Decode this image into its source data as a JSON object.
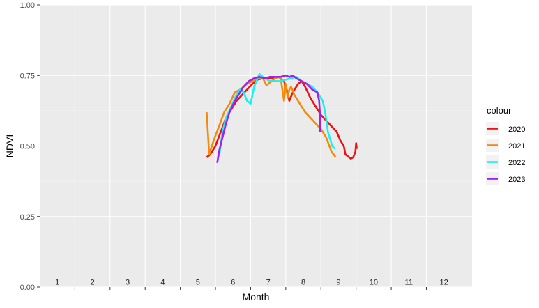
{
  "chart_data": {
    "type": "line",
    "xlabel": "Month",
    "ylabel": "NDVI",
    "xlim": [
      0.5,
      12.8
    ],
    "ylim": [
      0,
      1
    ],
    "y_ticks": [
      0.0,
      0.25,
      0.5,
      0.75,
      1.0
    ],
    "y_tick_labels": [
      "0.00",
      "0.25",
      "0.50",
      "0.75",
      "1.00"
    ],
    "month_labels": [
      "1",
      "2",
      "3",
      "4",
      "5",
      "6",
      "7",
      "8",
      "9",
      "10",
      "11",
      "12"
    ],
    "grid": true,
    "legend": {
      "title": "colour",
      "position": "right"
    },
    "series": [
      {
        "name": "2020",
        "color": "#ee1111",
        "points": [
          [
            5.25,
            0.46
          ],
          [
            5.35,
            0.47
          ],
          [
            5.5,
            0.5
          ],
          [
            5.65,
            0.55
          ],
          [
            5.8,
            0.6
          ],
          [
            5.95,
            0.63
          ],
          [
            6.1,
            0.66
          ],
          [
            6.25,
            0.68
          ],
          [
            6.4,
            0.7
          ],
          [
            6.55,
            0.72
          ],
          [
            6.7,
            0.735
          ],
          [
            6.85,
            0.74
          ],
          [
            7.0,
            0.74
          ],
          [
            7.15,
            0.74
          ],
          [
            7.3,
            0.745
          ],
          [
            7.45,
            0.73
          ],
          [
            7.55,
            0.69
          ],
          [
            7.6,
            0.66
          ],
          [
            7.7,
            0.69
          ],
          [
            7.85,
            0.72
          ],
          [
            7.95,
            0.73
          ],
          [
            8.05,
            0.71
          ],
          [
            8.2,
            0.67
          ],
          [
            8.35,
            0.64
          ],
          [
            8.5,
            0.61
          ],
          [
            8.65,
            0.59
          ],
          [
            8.8,
            0.57
          ],
          [
            8.95,
            0.55
          ],
          [
            9.05,
            0.52
          ],
          [
            9.15,
            0.5
          ],
          [
            9.2,
            0.47
          ],
          [
            9.3,
            0.46
          ],
          [
            9.35,
            0.455
          ],
          [
            9.42,
            0.46
          ],
          [
            9.48,
            0.48
          ],
          [
            9.5,
            0.51
          ],
          [
            9.52,
            0.49
          ]
        ]
      },
      {
        "name": "2021",
        "color": "#f28b0c",
        "points": [
          [
            5.25,
            0.62
          ],
          [
            5.32,
            0.47
          ],
          [
            5.45,
            0.52
          ],
          [
            5.6,
            0.57
          ],
          [
            5.75,
            0.62
          ],
          [
            5.9,
            0.65
          ],
          [
            6.05,
            0.69
          ],
          [
            6.2,
            0.7
          ],
          [
            6.4,
            0.72
          ],
          [
            6.55,
            0.73
          ],
          [
            6.7,
            0.74
          ],
          [
            6.85,
            0.74
          ],
          [
            6.95,
            0.715
          ],
          [
            7.05,
            0.725
          ],
          [
            7.2,
            0.74
          ],
          [
            7.35,
            0.745
          ],
          [
            7.45,
            0.66
          ],
          [
            7.5,
            0.72
          ],
          [
            7.55,
            0.67
          ],
          [
            7.6,
            0.7
          ],
          [
            7.65,
            0.71
          ],
          [
            7.75,
            0.68
          ],
          [
            7.9,
            0.65
          ],
          [
            8.05,
            0.62
          ],
          [
            8.2,
            0.6
          ],
          [
            8.35,
            0.58
          ],
          [
            8.5,
            0.56
          ],
          [
            8.65,
            0.53
          ],
          [
            8.8,
            0.48
          ],
          [
            8.92,
            0.46
          ]
        ]
      },
      {
        "name": "2022",
        "color": "#19f0f0",
        "points": [
          [
            5.6,
            0.46
          ],
          [
            5.7,
            0.55
          ],
          [
            5.8,
            0.6
          ],
          [
            5.95,
            0.64
          ],
          [
            6.05,
            0.67
          ],
          [
            6.2,
            0.7
          ],
          [
            6.3,
            0.69
          ],
          [
            6.4,
            0.66
          ],
          [
            6.5,
            0.65
          ],
          [
            6.6,
            0.71
          ],
          [
            6.75,
            0.755
          ],
          [
            6.9,
            0.74
          ],
          [
            7.05,
            0.73
          ],
          [
            7.2,
            0.73
          ],
          [
            7.35,
            0.73
          ],
          [
            7.5,
            0.735
          ],
          [
            7.65,
            0.74
          ],
          [
            7.8,
            0.745
          ],
          [
            7.95,
            0.73
          ],
          [
            8.1,
            0.72
          ],
          [
            8.25,
            0.71
          ],
          [
            8.4,
            0.69
          ],
          [
            8.55,
            0.66
          ],
          [
            8.62,
            0.62
          ],
          [
            8.7,
            0.55
          ],
          [
            8.82,
            0.5
          ],
          [
            8.9,
            0.49
          ]
        ]
      },
      {
        "name": "2023",
        "color": "#a020f0",
        "points": [
          [
            5.55,
            0.44
          ],
          [
            5.6,
            0.48
          ],
          [
            5.7,
            0.53
          ],
          [
            5.8,
            0.58
          ],
          [
            5.9,
            0.62
          ],
          [
            6.05,
            0.66
          ],
          [
            6.15,
            0.68
          ],
          [
            6.3,
            0.71
          ],
          [
            6.45,
            0.73
          ],
          [
            6.6,
            0.74
          ],
          [
            6.75,
            0.745
          ],
          [
            6.9,
            0.74
          ],
          [
            7.05,
            0.745
          ],
          [
            7.2,
            0.745
          ],
          [
            7.35,
            0.745
          ],
          [
            7.5,
            0.75
          ],
          [
            7.6,
            0.745
          ],
          [
            7.7,
            0.75
          ],
          [
            7.8,
            0.74
          ],
          [
            7.95,
            0.73
          ],
          [
            8.1,
            0.72
          ],
          [
            8.25,
            0.7
          ],
          [
            8.4,
            0.69
          ],
          [
            8.45,
            0.66
          ],
          [
            8.48,
            0.6
          ],
          [
            8.48,
            0.55
          ]
        ]
      }
    ]
  }
}
